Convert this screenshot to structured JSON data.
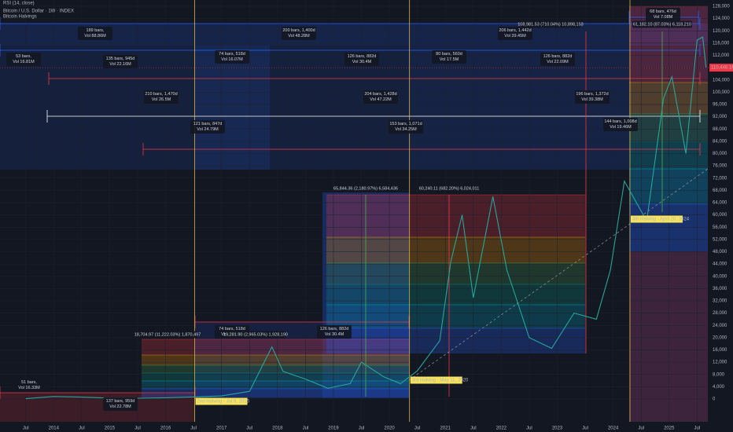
{
  "chart_data": {
    "type": "line",
    "indicator": "RSI (14, close)",
    "title": "Bitcoin / U.S. Dollar · 1W · INDEX",
    "subtitle": "Bitcoin Halvings",
    "color": "#26a69a",
    "x": [
      2013.5,
      2014.0,
      2014.5,
      2015.0,
      2015.5,
      2016.0,
      2016.5,
      2017.0,
      2017.5,
      2017.9,
      2018.1,
      2018.5,
      2018.9,
      2019.3,
      2019.5,
      2019.9,
      2020.2,
      2020.5,
      2020.9,
      2021.1,
      2021.3,
      2021.5,
      2021.85,
      2022.1,
      2022.5,
      2022.9,
      2023.3,
      2023.7,
      2023.95,
      2024.2,
      2024.6,
      2024.9,
      2025.05,
      2025.3,
      2025.5,
      2025.6,
      2025.66
    ],
    "values": [
      100,
      800,
      600,
      300,
      250,
      400,
      650,
      1000,
      2500,
      17000,
      9000,
      6500,
      3500,
      5000,
      12000,
      7200,
      5000,
      9200,
      19000,
      45000,
      60000,
      33000,
      66000,
      42000,
      20000,
      16500,
      28000,
      26000,
      42000,
      71000,
      58000,
      98000,
      105000,
      80000,
      117000,
      118000,
      108000
    ],
    "xlim": [
      2013.04,
      2025.72
    ],
    "ylim": [
      -8200,
      130050
    ],
    "xticks": [
      {
        "value": 2013.5,
        "label": "Jul"
      },
      2014,
      {
        "value": 2014.5,
        "label": "Jul"
      },
      2015,
      {
        "value": 2015.5,
        "label": "Jul"
      },
      2016,
      {
        "value": 2016.5,
        "label": "Jul"
      },
      2017,
      {
        "value": 2017.5,
        "label": "Jul"
      },
      2018,
      {
        "value": 2018.5,
        "label": "Jul"
      },
      2019,
      {
        "value": 2019.5,
        "label": "Jul"
      },
      2020,
      {
        "value": 2020.5,
        "label": "Jul"
      },
      2021,
      {
        "value": 2021.5,
        "label": "Jul"
      },
      2022,
      {
        "value": 2022.5,
        "label": "Jul"
      },
      2023,
      {
        "value": 2023.5,
        "label": "Jul"
      },
      2024,
      {
        "value": 2024.5,
        "label": "Jul"
      },
      2025,
      {
        "value": 2025.5,
        "label": "Jul"
      }
    ],
    "yticks": [
      0,
      {
        "value": 4000,
        "label": "4,000"
      },
      {
        "value": 8000,
        "label": "8,000"
      },
      {
        "value": 12000,
        "label": "12,000"
      },
      {
        "value": 16000,
        "label": "16,000"
      },
      {
        "value": 20000,
        "label": "20,000"
      },
      {
        "value": 24000,
        "label": "24,000"
      },
      {
        "value": 28000,
        "label": "28,000"
      },
      {
        "value": 32000,
        "label": "32,000"
      },
      {
        "value": 36000,
        "label": "36,000"
      },
      {
        "value": 40000,
        "label": "40,000"
      },
      {
        "value": 44000,
        "label": "44,000"
      },
      {
        "value": 48000,
        "label": "48,000"
      },
      {
        "value": 52000,
        "label": "52,000"
      },
      {
        "value": 56000,
        "label": "56,000"
      },
      {
        "value": 60000,
        "label": "60,000"
      },
      {
        "value": 64000,
        "label": "64,000"
      },
      {
        "value": 68000,
        "label": "68,000"
      },
      {
        "value": 72000,
        "label": "72,000"
      },
      {
        "value": 76000,
        "label": "76,000"
      },
      {
        "value": 80000,
        "label": "80,000"
      },
      {
        "value": 84000,
        "label": "84,000"
      },
      {
        "value": 88000,
        "label": "88,000"
      },
      {
        "value": 92000,
        "label": "92,000"
      },
      {
        "value": 96000,
        "label": "96,000"
      },
      {
        "value": 100000,
        "label": "100,000"
      },
      {
        "value": 104000,
        "label": "104,000"
      },
      {
        "value": 108000,
        "label": "108,000"
      },
      {
        "value": 112000,
        "label": "112,000"
      },
      {
        "value": 116000,
        "label": "116,000"
      },
      {
        "value": 120000,
        "label": "120,000"
      },
      {
        "value": 124000,
        "label": "124,000"
      },
      {
        "value": 128000,
        "label": "128,000"
      }
    ],
    "last_price_label": "110,448.16",
    "halvings": [
      {
        "label": "2nd Halving - Jul 9, 2016",
        "x": 2016.52
      },
      {
        "label": "3rd Halving - May 11, 2020",
        "x": 2020.36
      },
      {
        "label": "4th Halving - April 20, 2024",
        "x": 2024.3
      }
    ],
    "measurements": [
      {
        "lines": [
          "189 bars,",
          "Vol 88.86M"
        ]
      },
      {
        "lines": [
          "200 bars, 1,400d",
          "Vol 48.28M"
        ]
      },
      {
        "lines": [
          "206 bars, 1,442d",
          "Vol 39.45M"
        ]
      },
      {
        "lines": [
          "53 bars,",
          "Vol 16.81M"
        ]
      },
      {
        "lines": [
          "135 bars, 945d",
          "Vol 22.16M"
        ]
      },
      {
        "lines": [
          "74 bars, 518d",
          "Vol 16.07M"
        ]
      },
      {
        "lines": [
          "126 bars, 882d",
          "Vol 30.4M"
        ]
      },
      {
        "lines": [
          "80 bars, 560d",
          "Vol 17.5M"
        ]
      },
      {
        "lines": [
          "126 bars, 882d",
          "Vol 22.09M"
        ]
      },
      {
        "lines": [
          "210 bars, 1,470d",
          "Vol 26.5M"
        ]
      },
      {
        "lines": [
          "204 bars, 1,428d",
          "Vol 47.22M"
        ]
      },
      {
        "lines": [
          "196 bars, 1,372d",
          "Vol 39.38M"
        ]
      },
      {
        "lines": [
          "121 bars, 847d",
          "Vol 24.79M"
        ]
      },
      {
        "lines": [
          "153 bars, 1,071d",
          "Vol 34.25M"
        ]
      },
      {
        "lines": [
          "144 bars, 1,008d",
          "Vol 19.46M"
        ]
      },
      {
        "lines": [
          "68 bars, 476d",
          "Vol 7.08M"
        ]
      },
      {
        "lines": [
          "74 bars, 518d",
          "Vol 16.07M"
        ]
      },
      {
        "lines": [
          "126 bars, 882d",
          "Vol 30.4M"
        ]
      },
      {
        "lines": [
          "51 bars,",
          "Vol 16.33M"
        ]
      },
      {
        "lines": [
          "137 bars, 959d",
          "Vol 22.78M"
        ]
      }
    ],
    "price_ranges": [
      "65,844.36 (2,180.97%) 6,584,436",
      "60,240.11 (682.20%) 6,024,011",
      "108,981.53 (710.04%) 10,898,153",
      "61,182.10 (87.03%) 6,118,210",
      "18,704.97 (11,222.03%) 1,870,497",
      "19,281.90 (2,965.03%) 1,928,190"
    ]
  }
}
